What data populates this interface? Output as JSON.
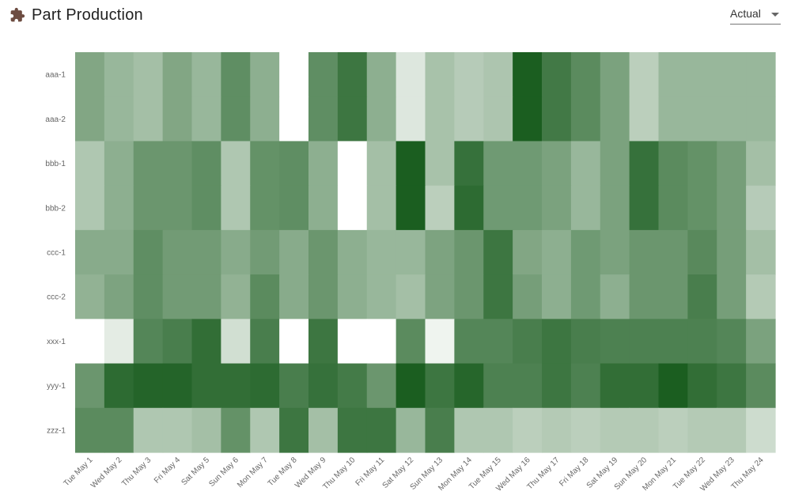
{
  "header": {
    "title": "Part Production",
    "icon": "puzzle-piece-icon",
    "icon_color": "#6d4c41"
  },
  "view_select": {
    "selected": "Actual"
  },
  "chart_data": {
    "type": "heatmap",
    "x": [
      "Tue May 1",
      "Wed May 2",
      "Thu May 3",
      "Fri May 4",
      "Sat May 5",
      "Sun May 6",
      "Mon May 7",
      "Tue May 8",
      "Wed May 9",
      "Thu May 10",
      "Fri May 11",
      "Sat May 12",
      "Sun May 13",
      "Mon May 14",
      "Tue May 15",
      "Wed May 16",
      "Thu May 17",
      "Fri May 18",
      "Sat May 19",
      "Sun May 20",
      "Mon May 21",
      "Tue May 22",
      "Wed May 23",
      "Thu May 24"
    ],
    "y": [
      "aaa-1",
      "aaa-2",
      "bbb-1",
      "bbb-2",
      "ccc-1",
      "ccc-2",
      "xxx-1",
      "yyy-1",
      "zzz-1"
    ],
    "values": [
      [
        0.55,
        0.45,
        0.4,
        0.55,
        0.45,
        0.7,
        0.5,
        0.0,
        0.7,
        0.85,
        0.5,
        0.15,
        0.38,
        0.32,
        0.36,
        1.0,
        0.83,
        0.72,
        0.58,
        0.3,
        0.45,
        0.45,
        0.45,
        0.45
      ],
      [
        0.55,
        0.45,
        0.4,
        0.55,
        0.45,
        0.7,
        0.5,
        0.0,
        0.7,
        0.85,
        0.5,
        0.15,
        0.38,
        0.32,
        0.36,
        1.0,
        0.83,
        0.72,
        0.58,
        0.3,
        0.45,
        0.45,
        0.45,
        0.45
      ],
      [
        0.35,
        0.5,
        0.65,
        0.65,
        0.7,
        0.35,
        0.68,
        0.7,
        0.5,
        0.0,
        0.4,
        1.0,
        0.38,
        0.88,
        0.63,
        0.63,
        0.58,
        0.45,
        0.58,
        0.88,
        0.72,
        0.68,
        0.6,
        0.4
      ],
      [
        0.35,
        0.5,
        0.65,
        0.65,
        0.7,
        0.35,
        0.68,
        0.7,
        0.5,
        0.0,
        0.4,
        1.0,
        0.3,
        0.92,
        0.63,
        0.63,
        0.58,
        0.45,
        0.58,
        0.88,
        0.72,
        0.68,
        0.6,
        0.32
      ],
      [
        0.52,
        0.52,
        0.7,
        0.62,
        0.62,
        0.52,
        0.62,
        0.52,
        0.65,
        0.5,
        0.45,
        0.45,
        0.57,
        0.65,
        0.85,
        0.55,
        0.5,
        0.63,
        0.58,
        0.65,
        0.65,
        0.73,
        0.6,
        0.4
      ],
      [
        0.48,
        0.57,
        0.7,
        0.62,
        0.62,
        0.48,
        0.72,
        0.52,
        0.65,
        0.5,
        0.45,
        0.4,
        0.57,
        0.65,
        0.85,
        0.6,
        0.5,
        0.63,
        0.5,
        0.65,
        0.65,
        0.8,
        0.6,
        0.33
      ],
      [
        0.0,
        0.12,
        0.75,
        0.8,
        0.9,
        0.2,
        0.8,
        0.0,
        0.85,
        0.0,
        0.0,
        0.72,
        0.07,
        0.75,
        0.75,
        0.8,
        0.85,
        0.8,
        0.78,
        0.78,
        0.78,
        0.78,
        0.75,
        0.58
      ],
      [
        0.65,
        0.92,
        0.96,
        0.96,
        0.9,
        0.9,
        0.92,
        0.8,
        0.88,
        0.82,
        0.65,
        1.0,
        0.85,
        0.95,
        0.78,
        0.78,
        0.85,
        0.78,
        0.9,
        0.9,
        1.0,
        0.9,
        0.85,
        0.72
      ],
      [
        0.72,
        0.72,
        0.35,
        0.35,
        0.4,
        0.68,
        0.35,
        0.85,
        0.4,
        0.85,
        0.85,
        0.45,
        0.8,
        0.35,
        0.35,
        0.3,
        0.33,
        0.3,
        0.33,
        0.33,
        0.3,
        0.33,
        0.33,
        0.22
      ]
    ],
    "color_scale": [
      "#ffffff",
      "#1b5e20"
    ],
    "grid": false,
    "legend": "none"
  }
}
